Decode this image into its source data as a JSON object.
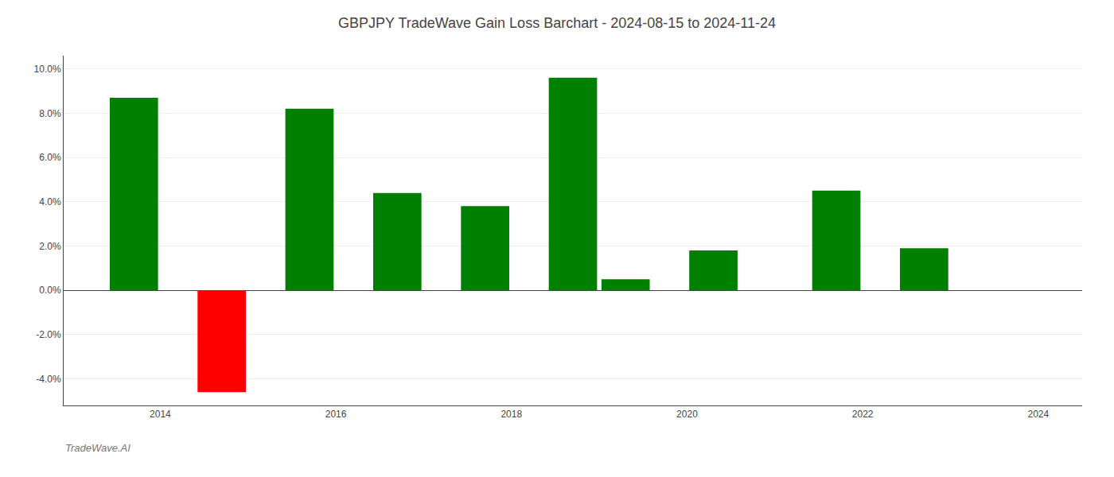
{
  "chart_data": {
    "type": "bar",
    "title": "GBPJPY TradeWave Gain Loss Barchart - 2024-08-15 to 2024-11-24",
    "annotations": [
      "TradeWave.AI"
    ],
    "x": [
      2013.7,
      2014.7,
      2015.7,
      2016.7,
      2017.7,
      2018.7,
      2019.3,
      2020.3,
      2021.7,
      2022.7
    ],
    "values": [
      0.087,
      -0.046,
      0.082,
      0.044,
      0.038,
      0.096,
      0.005,
      0.018,
      0.045,
      0.019
    ],
    "colors": [
      "#008000",
      "#ff0000",
      "#008000",
      "#008000",
      "#008000",
      "#008000",
      "#008000",
      "#008000",
      "#008000",
      "#008000"
    ],
    "xlim": [
      2012.9,
      2024.5
    ],
    "xticks": [
      2014,
      2016,
      2018,
      2020,
      2022,
      2024
    ],
    "ylim": [
      -0.052,
      0.106
    ],
    "yticks": [
      {
        "value": -0.04,
        "label": "-4.0%"
      },
      {
        "value": -0.02,
        "label": "-2.0%"
      },
      {
        "value": 0.0,
        "label": "0.0%"
      },
      {
        "value": 0.02,
        "label": "2.0%"
      },
      {
        "value": 0.04,
        "label": "4.0%"
      },
      {
        "value": 0.06,
        "label": "6.0%"
      },
      {
        "value": 0.08,
        "label": "8.0%"
      },
      {
        "value": 0.1,
        "label": "10.0%"
      }
    ],
    "grid": true
  }
}
